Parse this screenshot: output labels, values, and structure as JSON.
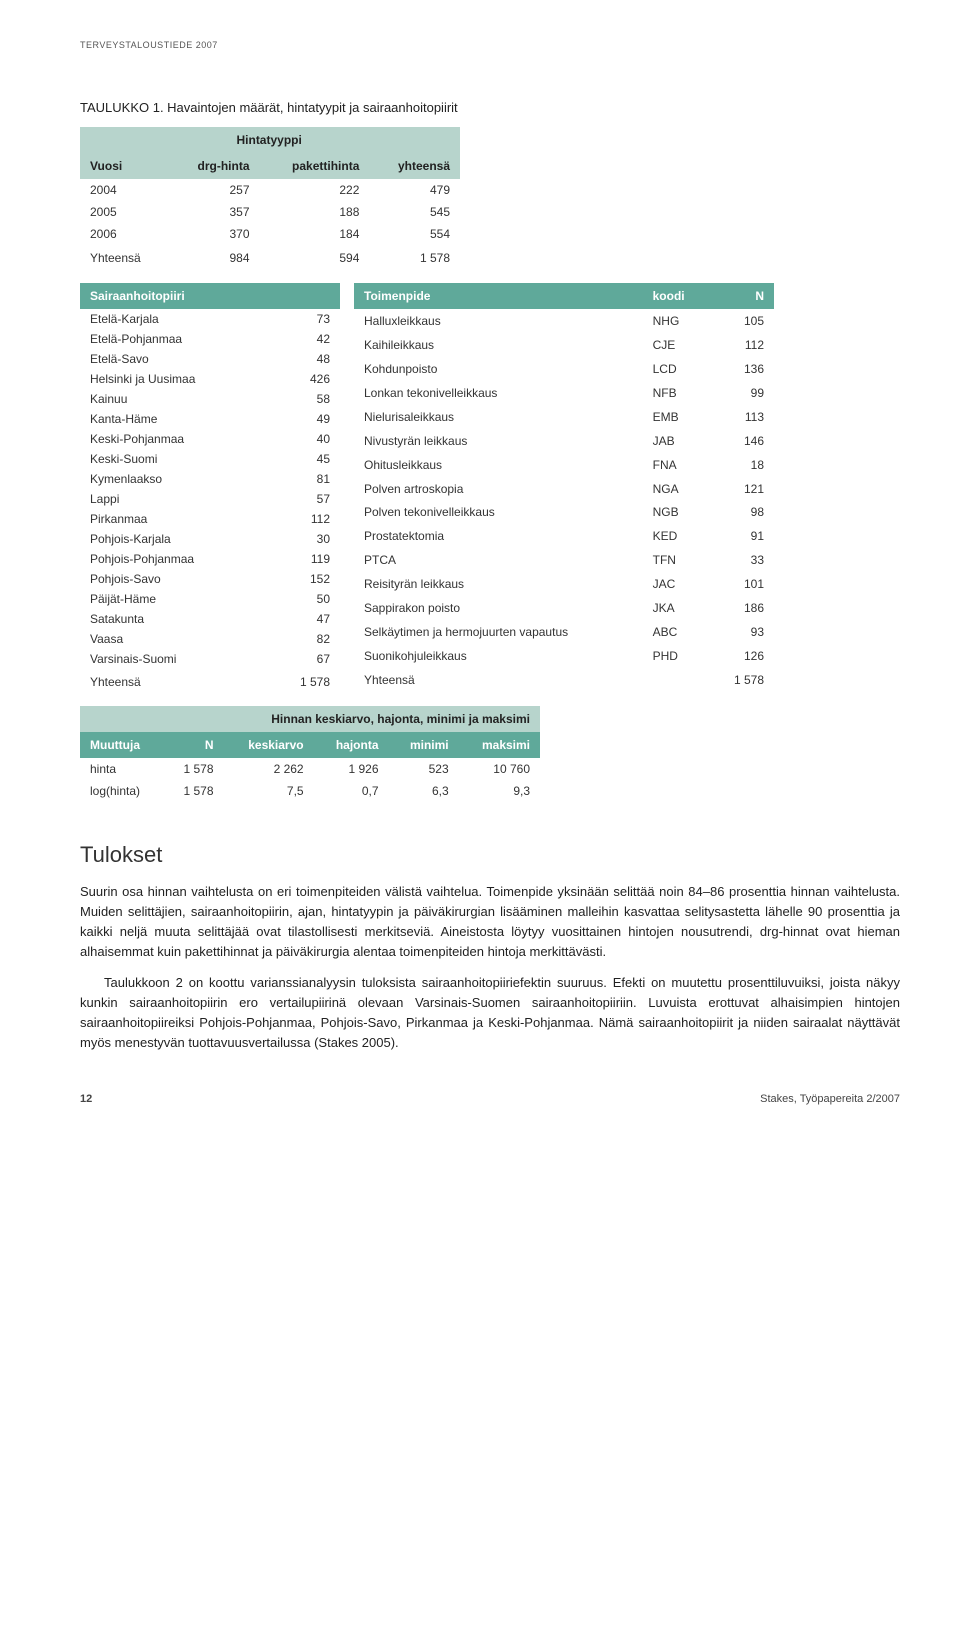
{
  "header": {
    "topline": "TERVEYSTALOUSTIEDE 2007"
  },
  "caption": "TAULUKKO 1. Havaintojen määrät, hintatyypit ja sairaanhoitopiirit",
  "table1": {
    "super": "Hintatyyppi",
    "cols": [
      "Vuosi",
      "drg-hinta",
      "pakettihinta",
      "yhteensä"
    ],
    "rows": [
      [
        "2004",
        "257",
        "222",
        "479"
      ],
      [
        "2005",
        "357",
        "188",
        "545"
      ],
      [
        "2006",
        "370",
        "184",
        "554"
      ]
    ],
    "total": [
      "Yhteensä",
      "984",
      "594",
      "1 578"
    ]
  },
  "sp": {
    "cols": [
      "Sairaanhoitopiiri",
      ""
    ],
    "rows": [
      [
        "Etelä-Karjala",
        "73"
      ],
      [
        "Etelä-Pohjanmaa",
        "42"
      ],
      [
        "Etelä-Savo",
        "48"
      ],
      [
        "Helsinki ja Uusimaa",
        "426"
      ],
      [
        "Kainuu",
        "58"
      ],
      [
        "Kanta-Häme",
        "49"
      ],
      [
        "Keski-Pohjanmaa",
        "40"
      ],
      [
        "Keski-Suomi",
        "45"
      ],
      [
        "Kymenlaakso",
        "81"
      ],
      [
        "Lappi",
        "57"
      ],
      [
        "Pirkanmaa",
        "112"
      ],
      [
        "Pohjois-Karjala",
        "30"
      ],
      [
        "Pohjois-Pohjanmaa",
        "119"
      ],
      [
        "Pohjois-Savo",
        "152"
      ],
      [
        "Päijät-Häme",
        "50"
      ],
      [
        "Satakunta",
        "47"
      ],
      [
        "Vaasa",
        "82"
      ],
      [
        "Varsinais-Suomi",
        "67"
      ]
    ],
    "total": [
      "Yhteensä",
      "1 578"
    ]
  },
  "tp": {
    "cols": [
      "Toimenpide",
      "koodi",
      "N"
    ],
    "rows": [
      [
        "Halluxleikkaus",
        "NHG",
        "105"
      ],
      [
        "Kaihileikkaus",
        "CJE",
        "112"
      ],
      [
        "Kohdunpoisto",
        "LCD",
        "136"
      ],
      [
        "Lonkan tekonivelleikkaus",
        "NFB",
        "99"
      ],
      [
        "Nielurisaleikkaus",
        "EMB",
        "113"
      ],
      [
        "Nivustyrän leikkaus",
        "JAB",
        "146"
      ],
      [
        "Ohitusleikkaus",
        "FNA",
        "18"
      ],
      [
        "Polven artroskopia",
        "NGA",
        "121"
      ],
      [
        "Polven tekonivelleikkaus",
        "NGB",
        "98"
      ],
      [
        "Prostatektomia",
        "KED",
        "91"
      ],
      [
        "PTCA",
        "TFN",
        "33"
      ],
      [
        "Reisityrän leikkaus",
        "JAC",
        "101"
      ],
      [
        "Sappirakon poisto",
        "JKA",
        "186"
      ],
      [
        "Selkäytimen ja hermojuurten vapautus",
        "ABC",
        "93"
      ],
      [
        "Suonikohjuleikkaus",
        "PHD",
        "126"
      ]
    ],
    "total": [
      "Yhteensä",
      "",
      "1 578"
    ]
  },
  "stats": {
    "title": "Hinnan keskiarvo, hajonta, minimi ja maksimi",
    "cols": [
      "Muuttuja",
      "N",
      "keskiarvo",
      "hajonta",
      "minimi",
      "maksimi"
    ],
    "rows": [
      [
        "hinta",
        "1 578",
        "2 262",
        "1 926",
        "523",
        "10 760"
      ],
      [
        "log(hinta)",
        "1 578",
        "7,5",
        "0,7",
        "6,3",
        "9,3"
      ]
    ]
  },
  "results": {
    "heading": "Tulokset",
    "p1": "Suurin osa hinnan vaihtelusta on eri toimenpiteiden välistä vaihtelua. Toimenpide yksinään selittää noin 84–86 prosenttia hinnan vaihtelusta. Muiden selittäjien, sairaanhoitopiirin, ajan, hintatyypin ja päiväkirurgian lisääminen malleihin kasvattaa selitysastetta lähelle 90 prosenttia ja kaikki neljä muuta selittäjää ovat tilastollisesti merkitseviä. Aineistosta löytyy vuosittainen hintojen nousutrendi, drg-hinnat ovat hieman alhaisemmat kuin pakettihinnat ja päiväkirurgia alentaa toimenpiteiden hintoja merkittävästi.",
    "p2": "Taulukkoon 2 on koottu varianssianalyysin tuloksista sairaanhoitopiiriefektin suuruus. Efekti on muutettu prosenttiluvuiksi, joista näkyy kunkin sairaanhoitopiirin ero vertailupiirinä olevaan Varsinais-Suomen sairaanhoitopiiriin. Luvuista erottuvat alhaisimpien hintojen sairaanhoitopii­reiksi Pohjois-Pohjanmaa, Pohjois-Savo, Pirkanmaa ja Keski-Pohjanmaa. Nämä sairaanhoitopiirit ja niiden sairaalat näyttävät myös menestyvän tuottavuusvertailussa (Stakes 2005)."
  },
  "footer": {
    "page": "12",
    "right": "Stakes, Työpapereita 2/2007"
  }
}
